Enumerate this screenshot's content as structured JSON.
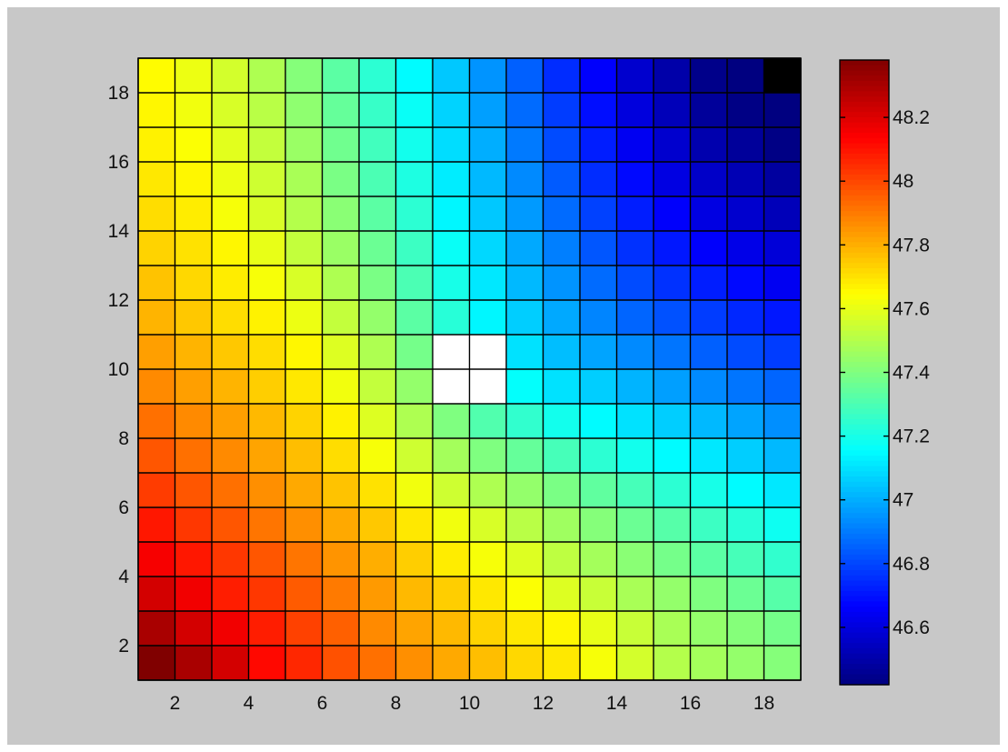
{
  "chart_data": {
    "type": "heatmap",
    "title": "",
    "xlabel": "",
    "ylabel": "",
    "grid": true,
    "nx": 19,
    "ny": 19,
    "xlim": [
      1,
      19
    ],
    "ylim": [
      1,
      19
    ],
    "x_ticks": [
      2,
      4,
      6,
      8,
      10,
      12,
      14,
      16,
      18
    ],
    "y_ticks": [
      2,
      4,
      6,
      8,
      10,
      12,
      14,
      16,
      18
    ],
    "x_tick_labels": [
      "2",
      "4",
      "6",
      "8",
      "10",
      "12",
      "14",
      "16",
      "18"
    ],
    "y_tick_labels": [
      "2",
      "4",
      "6",
      "8",
      "10",
      "12",
      "14",
      "16",
      "18"
    ],
    "colormap": "jet",
    "color_range": [
      46.42,
      48.38
    ],
    "colorbar": {
      "position": "right",
      "ticks": [
        46.6,
        46.8,
        47,
        47.2,
        47.4,
        47.6,
        47.8,
        48,
        48.2
      ],
      "tick_labels": [
        "46.6",
        "46.8",
        "47",
        "47.2",
        "47.4",
        "47.6",
        "47.8",
        "48",
        "48.2"
      ]
    },
    "values_note": "",
    "highlight_cells": [
      {
        "x": 9,
        "y": 10,
        "color": "#ffffff"
      },
      {
        "x": 10,
        "y": 10,
        "color": "#ffffff"
      },
      {
        "x": 9,
        "y": 9,
        "color": "#ffffff"
      },
      {
        "x": 10,
        "y": 9,
        "color": "#ffffff"
      },
      {
        "x": 18,
        "y": 18,
        "color": "#000000"
      }
    ],
    "values": [
      [
        48.38,
        48.3,
        48.22,
        48.12,
        48.06,
        47.98,
        47.92,
        47.86,
        47.81,
        47.77,
        47.72,
        47.69,
        47.63,
        47.56,
        47.5,
        47.47,
        47.44,
        47.41
      ],
      [
        48.3,
        48.22,
        48.16,
        48.08,
        48.01,
        47.95,
        47.87,
        47.82,
        47.78,
        47.73,
        47.69,
        47.66,
        47.6,
        47.54,
        47.48,
        47.44,
        47.41,
        47.38
      ],
      [
        48.22,
        48.16,
        48.08,
        48.03,
        47.96,
        47.9,
        47.84,
        47.78,
        47.74,
        47.69,
        47.64,
        47.58,
        47.54,
        47.48,
        47.44,
        47.4,
        47.36,
        47.32
      ],
      [
        48.15,
        48.09,
        48.03,
        47.97,
        47.91,
        47.85,
        47.8,
        47.74,
        47.68,
        47.63,
        47.58,
        47.52,
        47.47,
        47.42,
        47.38,
        47.33,
        47.29,
        47.25
      ],
      [
        48.09,
        48.03,
        47.97,
        47.91,
        47.86,
        47.81,
        47.75,
        47.69,
        47.62,
        47.57,
        47.51,
        47.46,
        47.41,
        47.36,
        47.32,
        47.27,
        47.23,
        47.18
      ],
      [
        48.02,
        47.97,
        47.92,
        47.86,
        47.81,
        47.76,
        47.7,
        47.62,
        47.55,
        47.49,
        47.44,
        47.39,
        47.34,
        47.29,
        47.24,
        47.2,
        47.15,
        47.11
      ],
      [
        47.97,
        47.92,
        47.87,
        47.82,
        47.77,
        47.71,
        47.63,
        47.55,
        47.47,
        47.4,
        47.35,
        47.29,
        47.24,
        47.19,
        47.15,
        47.11,
        47.06,
        47.02
      ],
      [
        47.92,
        47.87,
        47.83,
        47.78,
        47.73,
        47.67,
        47.58,
        47.49,
        47.4,
        47.31,
        47.25,
        47.19,
        47.15,
        47.1,
        47.06,
        47.02,
        46.98,
        46.94
      ],
      [
        47.87,
        47.83,
        47.79,
        47.74,
        47.69,
        47.62,
        47.53,
        47.44,
        null,
        null,
        47.16,
        47.1,
        47.06,
        47.01,
        46.97,
        46.93,
        46.89,
        46.86
      ],
      [
        47.83,
        47.79,
        47.75,
        47.71,
        47.66,
        47.58,
        47.49,
        47.38,
        null,
        null,
        47.1,
        47.03,
        46.98,
        46.93,
        46.89,
        46.85,
        46.81,
        46.78
      ],
      [
        47.79,
        47.75,
        47.71,
        47.67,
        47.61,
        47.53,
        47.44,
        47.33,
        47.23,
        47.14,
        47.06,
        46.99,
        46.92,
        46.86,
        46.82,
        46.78,
        46.74,
        46.71
      ],
      [
        47.76,
        47.72,
        47.68,
        47.63,
        47.57,
        47.49,
        47.39,
        47.3,
        47.2,
        47.11,
        47.02,
        46.95,
        46.87,
        46.81,
        46.76,
        46.72,
        46.68,
        46.64
      ],
      [
        47.73,
        47.7,
        47.66,
        47.6,
        47.53,
        47.45,
        47.36,
        47.27,
        47.17,
        47.08,
        46.99,
        46.91,
        46.83,
        46.76,
        46.71,
        46.66,
        46.62,
        46.59
      ],
      [
        47.71,
        47.68,
        47.63,
        47.57,
        47.5,
        47.42,
        47.33,
        47.24,
        47.14,
        47.05,
        46.96,
        46.87,
        46.79,
        46.72,
        46.66,
        46.61,
        46.57,
        46.53
      ],
      [
        47.69,
        47.66,
        47.61,
        47.55,
        47.48,
        47.39,
        47.3,
        47.21,
        47.12,
        47.02,
        46.93,
        46.84,
        46.75,
        46.68,
        46.61,
        46.56,
        46.52,
        46.48
      ],
      [
        47.67,
        47.64,
        47.59,
        47.53,
        47.45,
        47.37,
        47.28,
        47.19,
        47.09,
        47.0,
        46.9,
        46.81,
        46.72,
        46.64,
        46.57,
        46.51,
        46.47,
        46.43
      ],
      [
        47.66,
        47.62,
        47.57,
        47.51,
        47.43,
        47.35,
        47.26,
        47.17,
        47.07,
        46.97,
        46.87,
        46.78,
        46.69,
        46.6,
        46.53,
        46.47,
        46.43,
        46.3
      ],
      [
        47.65,
        47.61,
        47.56,
        47.49,
        47.41,
        47.33,
        47.24,
        47.15,
        47.05,
        46.95,
        46.85,
        46.75,
        46.66,
        46.57,
        46.5,
        46.44,
        46.4,
        null
      ]
    ]
  }
}
